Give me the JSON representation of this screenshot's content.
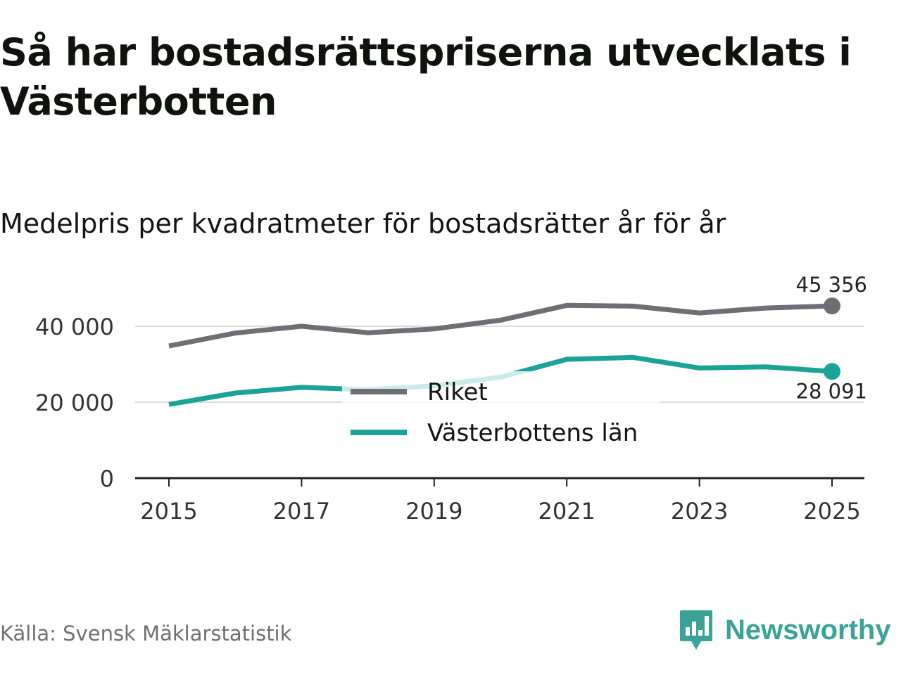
{
  "chart_data": {
    "type": "line",
    "title": "Så har bostadsrättspriserna utvecklats i Västerbotten",
    "subtitle": "Medelpris per kvadratmeter för bostadsrätter år för år",
    "x": [
      2015,
      2016,
      2017,
      2018,
      2019,
      2020,
      2021,
      2022,
      2023,
      2024,
      2025
    ],
    "x_tick_labels": [
      "2015",
      "2017",
      "2019",
      "2021",
      "2023",
      "2025"
    ],
    "y_tick_labels": [
      "0",
      "20 000",
      "40 000"
    ],
    "y_ticks": [
      0,
      20000,
      40000
    ],
    "ylim": [
      0,
      50000
    ],
    "grid": true,
    "legend_placement": "center",
    "series": [
      {
        "name": "Riket",
        "color": "#6f6e75",
        "values": [
          34800,
          38200,
          40000,
          38300,
          39300,
          41600,
          45500,
          45300,
          43500,
          44800,
          45356
        ],
        "end_label": "45 356"
      },
      {
        "name": "Västerbottens län",
        "color": "#1aa396",
        "values": [
          19400,
          22400,
          23900,
          23300,
          24300,
          26600,
          31300,
          31800,
          29000,
          29300,
          28091
        ],
        "end_label": "28 091"
      }
    ],
    "source": "Källa: Svensk Mäklarstatistik"
  },
  "brand": {
    "name": "Newsworthy",
    "logo_icon": "bar-chart-speech-bubble-icon",
    "color": "#3aa296"
  }
}
